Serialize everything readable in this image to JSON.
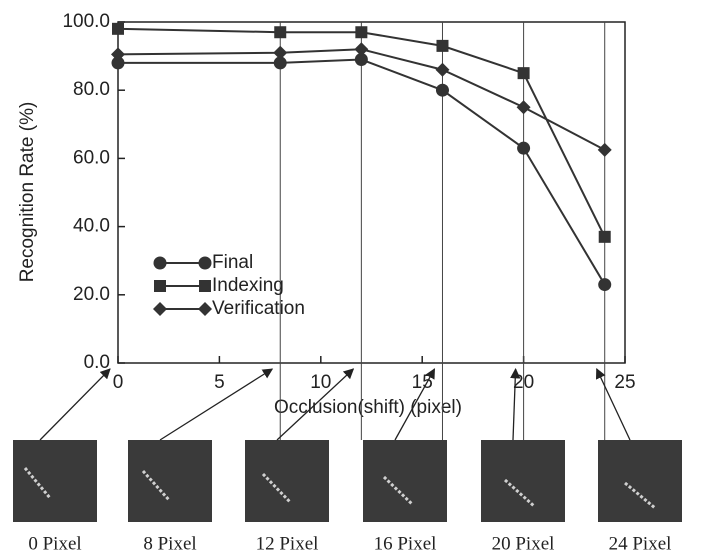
{
  "chart_data": {
    "type": "line",
    "x_label": "Occlusion(shift)   (pixel)",
    "y_label": "Recognition Rate (%)",
    "x": [
      0,
      8,
      12,
      16,
      20,
      24
    ],
    "series": [
      {
        "name": "Final",
        "color": "#333333",
        "marker": "circle",
        "values": [
          88,
          88,
          89,
          80,
          63,
          23
        ]
      },
      {
        "name": "Indexing",
        "color": "#333333",
        "marker": "square",
        "values": [
          98,
          97,
          97,
          93,
          85,
          37
        ]
      },
      {
        "name": "Verification",
        "color": "#333333",
        "marker": "diamond",
        "values": [
          90.5,
          91,
          92,
          86,
          75,
          62.5
        ]
      }
    ],
    "xlim": [
      0,
      25
    ],
    "xticks": [
      0,
      5,
      10,
      15,
      20,
      25
    ],
    "ylim": [
      0,
      100
    ],
    "yticks": [
      {
        "value": 0,
        "label": "0.0"
      },
      {
        "value": 20,
        "label": "20.0"
      },
      {
        "value": 40,
        "label": "40.0"
      },
      {
        "value": 60,
        "label": "60.0"
      },
      {
        "value": 80,
        "label": "80.0"
      },
      {
        "value": 100,
        "label": "100.0"
      }
    ]
  },
  "panels": [
    "0 Pixel",
    "8 Pixel",
    "12 Pixel",
    "16 Pixel",
    "20 Pixel",
    "24 Pixel"
  ]
}
